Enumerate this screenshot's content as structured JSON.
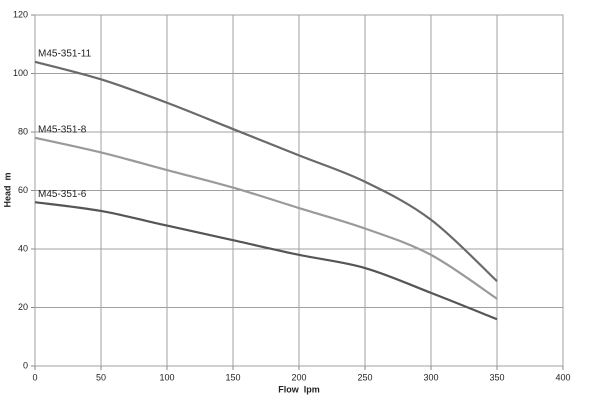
{
  "chart_data": {
    "type": "line",
    "x_label": "Flow  lpm",
    "y_label": "Head  m",
    "x": [
      0,
      50,
      100,
      150,
      200,
      250,
      300,
      350
    ],
    "series": [
      {
        "name": "M45-351-11",
        "color": "#6a6a6a",
        "values": [
          104,
          98,
          90,
          81,
          72,
          63,
          50,
          29
        ]
      },
      {
        "name": "M45-351-8",
        "color": "#9a9a9a",
        "values": [
          78,
          73,
          67,
          61,
          54,
          47,
          38,
          23
        ]
      },
      {
        "name": "M45-351-6",
        "color": "#555555",
        "values": [
          56,
          53,
          48,
          43,
          38,
          33.5,
          25,
          16
        ]
      }
    ],
    "xlim": [
      0,
      400
    ],
    "xticks": [
      0,
      50,
      100,
      150,
      200,
      250,
      300,
      350,
      400
    ],
    "ylim": [
      0,
      120
    ],
    "yticks": [
      0,
      20,
      40,
      60,
      80,
      100,
      120
    ],
    "grid": true
  }
}
